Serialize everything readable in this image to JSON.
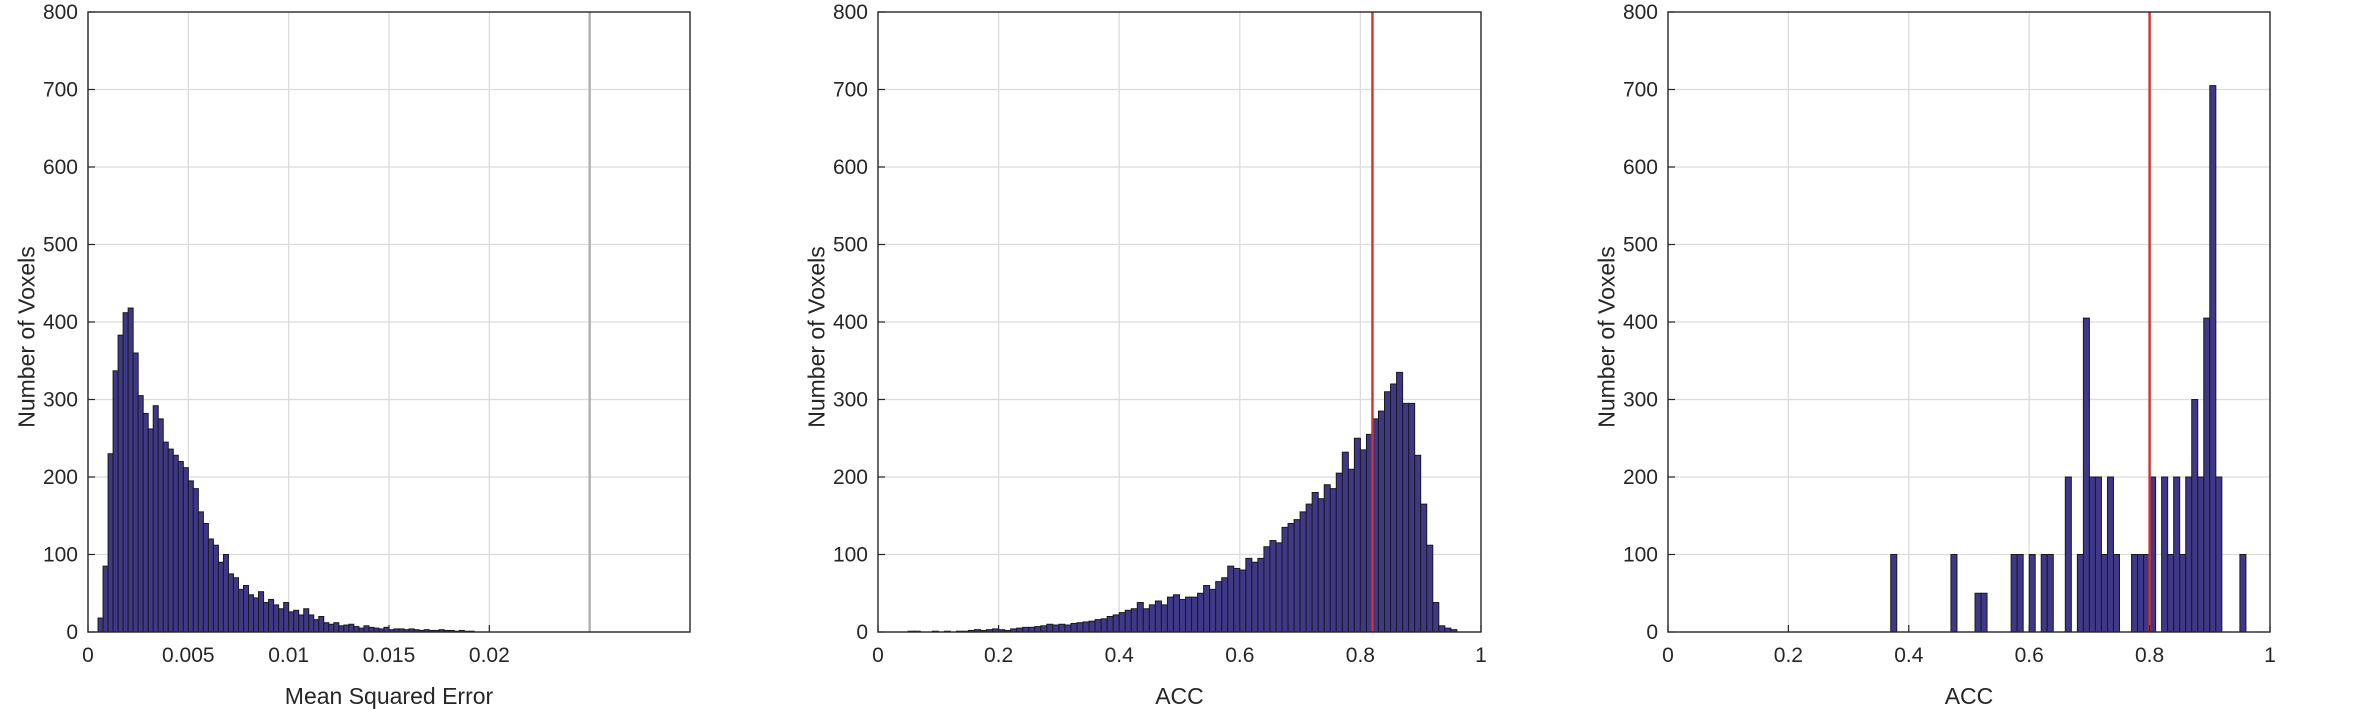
{
  "colors": {
    "bar_fill": "#3f3787",
    "bar_edge": "#1a1a1a",
    "grid": "#dcdcdc",
    "axis": "#262626",
    "marker_red": "#cc3333",
    "marker_gray": "#b0b0b0"
  },
  "chart_data": [
    {
      "type": "bar",
      "subtype": "histogram",
      "xlabel": "Mean Squared Error",
      "ylabel": "Number of Voxels",
      "xlim": [
        0,
        0.03
      ],
      "ylim": [
        0,
        800
      ],
      "grid": true,
      "xticks": [
        0,
        0.005,
        0.01,
        0.015,
        0.02
      ],
      "xtick_labels": [
        "0",
        "0.005",
        "0.01",
        "0.015",
        "0.02"
      ],
      "xgrid": [
        0.005,
        0.01,
        0.015,
        0.02,
        0.025
      ],
      "yticks": [
        0,
        100,
        200,
        300,
        400,
        500,
        600,
        700,
        800
      ],
      "ytick_labels": [
        "0",
        "100",
        "200",
        "300",
        "400",
        "500",
        "600",
        "700",
        "800"
      ],
      "bin_width": 0.00025,
      "bin_start": 0.0005,
      "values": [
        18,
        85,
        230,
        337,
        383,
        412,
        418,
        360,
        305,
        282,
        262,
        292,
        275,
        245,
        236,
        228,
        220,
        212,
        195,
        185,
        155,
        140,
        120,
        112,
        90,
        100,
        75,
        70,
        55,
        60,
        48,
        44,
        52,
        38,
        42,
        35,
        30,
        38,
        26,
        28,
        22,
        30,
        22,
        16,
        20,
        12,
        10,
        12,
        8,
        9,
        10,
        7,
        5,
        8,
        6,
        5,
        4,
        6,
        3,
        4,
        4,
        3,
        4,
        3,
        2,
        3,
        2,
        2,
        3,
        2,
        2,
        1,
        2,
        1,
        1
      ],
      "vlines": [
        {
          "x": 0.025,
          "color": "gray"
        }
      ]
    },
    {
      "type": "bar",
      "subtype": "histogram",
      "xlabel": "ACC",
      "ylabel": "Number of Voxels",
      "xlim": [
        0,
        1
      ],
      "ylim": [
        0,
        800
      ],
      "grid": true,
      "xticks": [
        0,
        0.2,
        0.4,
        0.6,
        0.8,
        1
      ],
      "xtick_labels": [
        "0",
        "0.2",
        "0.4",
        "0.6",
        "0.8",
        "1"
      ],
      "yticks": [
        0,
        100,
        200,
        300,
        400,
        500,
        600,
        700,
        800
      ],
      "ytick_labels": [
        "0",
        "100",
        "200",
        "300",
        "400",
        "500",
        "600",
        "700",
        "800"
      ],
      "bin_width": 0.01,
      "bin_start": 0.05,
      "values": [
        1,
        1,
        0,
        0,
        1,
        0,
        1,
        0,
        1,
        1,
        2,
        3,
        2,
        3,
        4,
        3,
        2,
        4,
        5,
        6,
        6,
        7,
        8,
        10,
        9,
        10,
        9,
        11,
        12,
        13,
        14,
        16,
        17,
        20,
        22,
        25,
        28,
        30,
        38,
        30,
        35,
        40,
        35,
        45,
        48,
        42,
        45,
        45,
        50,
        60,
        55,
        65,
        70,
        85,
        82,
        80,
        95,
        90,
        95,
        110,
        118,
        115,
        135,
        140,
        145,
        155,
        165,
        180,
        172,
        190,
        185,
        205,
        232,
        210,
        250,
        235,
        255,
        275,
        285,
        310,
        320,
        335,
        295,
        295,
        228,
        165,
        112,
        38,
        8,
        5,
        3
      ],
      "vlines": [
        {
          "x": 0.82,
          "color": "red"
        }
      ]
    },
    {
      "type": "bar",
      "subtype": "histogram",
      "xlabel": "ACC",
      "ylabel": "Number of Voxels",
      "xlim": [
        0,
        1
      ],
      "ylim": [
        0,
        800
      ],
      "grid": true,
      "xticks": [
        0,
        0.2,
        0.4,
        0.6,
        0.8,
        1
      ],
      "xtick_labels": [
        "0",
        "0.2",
        "0.4",
        "0.6",
        "0.8",
        "1"
      ],
      "yticks": [
        0,
        100,
        200,
        300,
        400,
        500,
        600,
        700,
        800
      ],
      "ytick_labels": [
        "0",
        "100",
        "200",
        "300",
        "400",
        "500",
        "600",
        "700",
        "800"
      ],
      "bin_width": 0.01,
      "bars": [
        {
          "x": 0.375,
          "y": 100
        },
        {
          "x": 0.475,
          "y": 100
        },
        {
          "x": 0.515,
          "y": 50
        },
        {
          "x": 0.525,
          "y": 50
        },
        {
          "x": 0.575,
          "y": 100
        },
        {
          "x": 0.585,
          "y": 100
        },
        {
          "x": 0.605,
          "y": 100
        },
        {
          "x": 0.625,
          "y": 100
        },
        {
          "x": 0.635,
          "y": 100
        },
        {
          "x": 0.665,
          "y": 200
        },
        {
          "x": 0.685,
          "y": 100
        },
        {
          "x": 0.695,
          "y": 405
        },
        {
          "x": 0.705,
          "y": 200
        },
        {
          "x": 0.715,
          "y": 200
        },
        {
          "x": 0.725,
          "y": 100
        },
        {
          "x": 0.735,
          "y": 200
        },
        {
          "x": 0.745,
          "y": 100
        },
        {
          "x": 0.775,
          "y": 100
        },
        {
          "x": 0.785,
          "y": 100
        },
        {
          "x": 0.795,
          "y": 100
        },
        {
          "x": 0.805,
          "y": 200
        },
        {
          "x": 0.825,
          "y": 200
        },
        {
          "x": 0.835,
          "y": 100
        },
        {
          "x": 0.845,
          "y": 200
        },
        {
          "x": 0.855,
          "y": 100
        },
        {
          "x": 0.865,
          "y": 200
        },
        {
          "x": 0.875,
          "y": 300
        },
        {
          "x": 0.885,
          "y": 200
        },
        {
          "x": 0.895,
          "y": 405
        },
        {
          "x": 0.905,
          "y": 705
        },
        {
          "x": 0.915,
          "y": 200
        },
        {
          "x": 0.955,
          "y": 100
        }
      ],
      "vlines": [
        {
          "x": 0.8,
          "color": "red"
        }
      ]
    }
  ]
}
